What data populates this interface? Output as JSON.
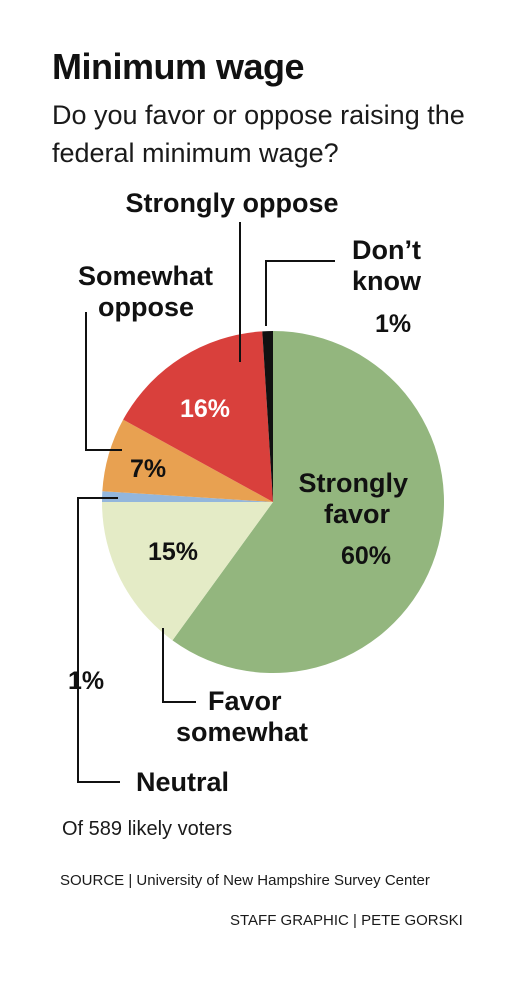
{
  "header": {
    "title": "Minimum wage",
    "subtitle": "Do you favor or oppose raising the federal minimum wage?"
  },
  "chart_data": {
    "type": "pie",
    "slices": [
      {
        "label": "Strongly favor",
        "value": 60,
        "display": "60%",
        "color": "#93b67e"
      },
      {
        "label": "Favor somewhat",
        "value": 15,
        "display": "15%",
        "color": "#e4ebc6"
      },
      {
        "label": "Neutral",
        "value": 1,
        "display": "1%",
        "color": "#93b6dc"
      },
      {
        "label": "Somewhat oppose",
        "value": 7,
        "display": "7%",
        "color": "#e8a151"
      },
      {
        "label": "Strongly oppose",
        "value": 16,
        "display": "16%",
        "color": "#d9403c"
      },
      {
        "label": "Don’t know",
        "value": 1,
        "display": "1%",
        "color": "#111111"
      }
    ]
  },
  "labels": {
    "strongly_favor": [
      "Strongly",
      "favor"
    ],
    "favor_somewhat": [
      "Favor",
      "somewhat"
    ],
    "neutral": "Neutral",
    "somewhat_oppose": [
      "Somewhat",
      "oppose"
    ],
    "strongly_oppose": "Strongly oppose",
    "dont_know": [
      "Don’t",
      "know"
    ]
  },
  "footer": {
    "note": "Of 589 likely voters",
    "source": "SOURCE | University of New Hampshire Survey Center",
    "credit": "STAFF GRAPHIC | PETE GORSKI"
  }
}
